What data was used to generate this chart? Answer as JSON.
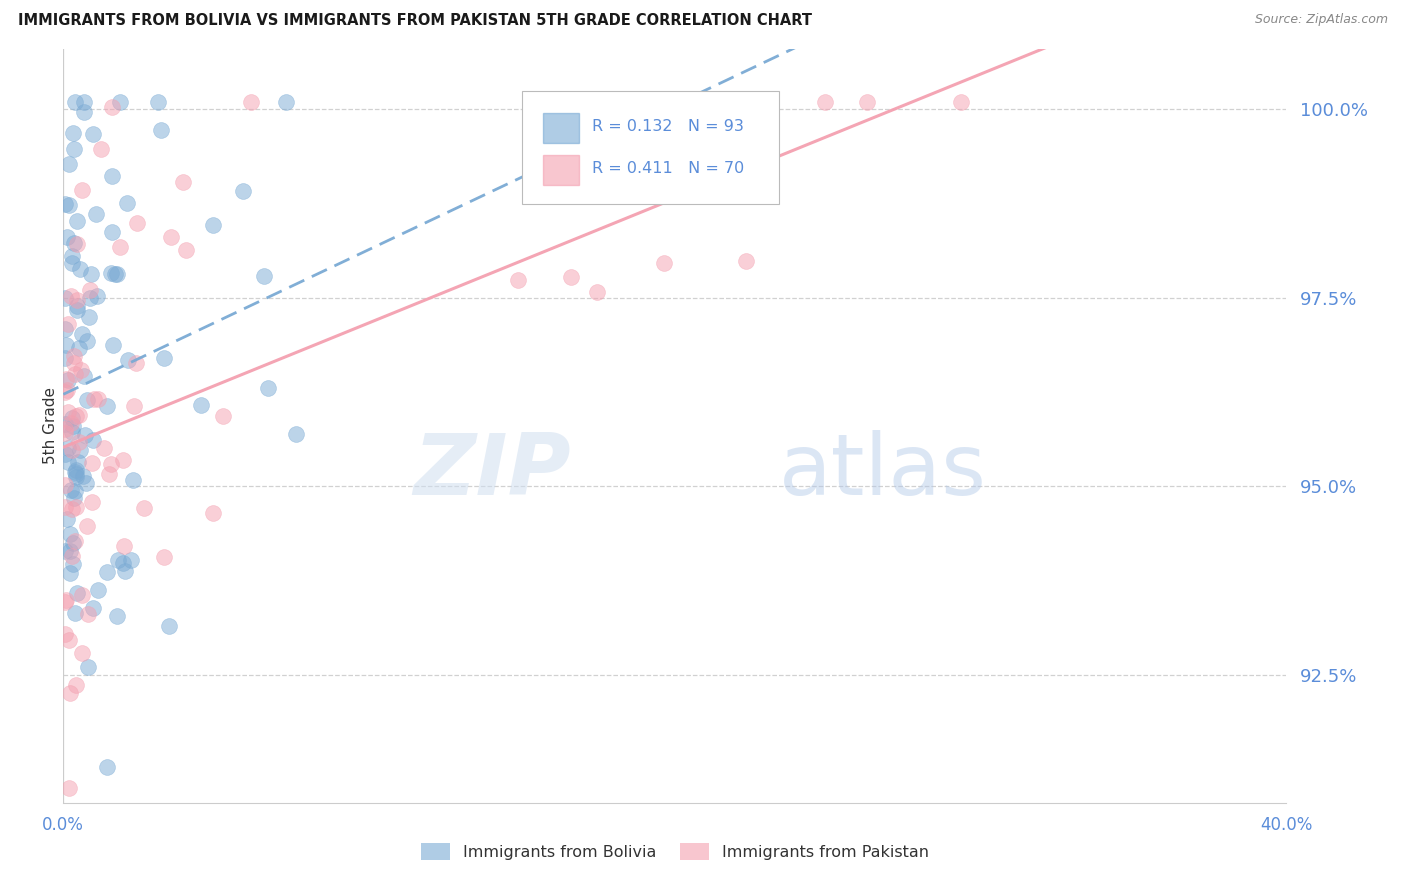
{
  "title": "IMMIGRANTS FROM BOLIVIA VS IMMIGRANTS FROM PAKISTAN 5TH GRADE CORRELATION CHART",
  "source": "Source: ZipAtlas.com",
  "ylabel": "5th Grade",
  "yticks": [
    92.5,
    95.0,
    97.5,
    100.0
  ],
  "ytick_labels": [
    "92.5%",
    "95.0%",
    "97.5%",
    "100.0%"
  ],
  "xmin": 0.0,
  "xmax": 40.0,
  "ymin": 90.8,
  "ymax": 100.8,
  "bolivia_color": "#7aaad4",
  "pakistan_color": "#f4a0b0",
  "bolivia_R": 0.132,
  "bolivia_N": 93,
  "pakistan_R": 0.411,
  "pakistan_N": 70,
  "watermark_zip": "ZIP",
  "watermark_atlas": "atlas",
  "background_color": "#ffffff",
  "axis_label_color": "#5b8dd9",
  "grid_color": "#cccccc",
  "legend_label_color": "#5b8dd9"
}
